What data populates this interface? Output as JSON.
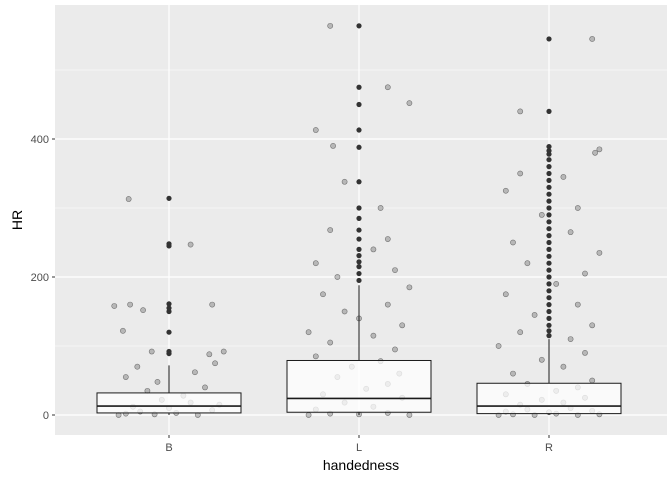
{
  "chart_data": {
    "type": "boxplot_jitter",
    "xlabel": "handedness",
    "ylabel": "HR",
    "categories": [
      "B",
      "L",
      "R"
    ],
    "ylim": [
      -28,
      588
    ],
    "yticks": [
      0,
      200,
      400
    ],
    "ytick_labels": [
      "0",
      "200",
      "400"
    ],
    "grid": true,
    "colors": {
      "panel": "#EBEBEB",
      "grid_major": "#FFFFFF",
      "box_fill": "#FFFFFF",
      "box_stroke": "#1A1A1A",
      "outlier": "#333333",
      "jitter": "#000000"
    },
    "boxes": [
      {
        "category": "B",
        "min": 0,
        "q1": 3,
        "median": 13,
        "q3": 32,
        "max": 72,
        "outliers": [
          89,
          92,
          120,
          150,
          155,
          161,
          245,
          248,
          314
        ]
      },
      {
        "category": "L",
        "min": 0,
        "q1": 4,
        "median": 24,
        "q3": 79,
        "max": 188,
        "outliers": [
          195,
          205,
          215,
          222,
          231,
          240,
          255,
          268,
          285,
          300,
          338,
          388,
          413,
          450,
          475,
          564
        ]
      },
      {
        "category": "R",
        "min": 0,
        "q1": 2,
        "median": 13,
        "q3": 46,
        "max": 110,
        "outliers": [
          115,
          122,
          130,
          140,
          150,
          160,
          170,
          180,
          190,
          200,
          210,
          220,
          230,
          240,
          250,
          260,
          270,
          280,
          290,
          300,
          310,
          320,
          330,
          340,
          350,
          360,
          370,
          378,
          383,
          389,
          440,
          545
        ]
      }
    ],
    "jitter_points": {
      "B": [
        [
          -0.35,
          0
        ],
        [
          -0.3,
          2
        ],
        [
          -0.2,
          5
        ],
        [
          -0.1,
          1
        ],
        [
          0.05,
          3
        ],
        [
          0.2,
          0
        ],
        [
          0.3,
          7
        ],
        [
          -0.25,
          12
        ],
        [
          0.15,
          18
        ],
        [
          -0.05,
          22
        ],
        [
          0.1,
          28
        ],
        [
          -0.15,
          35
        ],
        [
          0.25,
          40
        ],
        [
          -0.3,
          55
        ],
        [
          0.18,
          62
        ],
        [
          -0.22,
          70
        ],
        [
          0.32,
          75
        ],
        [
          -0.12,
          92
        ],
        [
          0.28,
          88
        ],
        [
          -0.38,
          158
        ],
        [
          -0.27,
          160
        ],
        [
          -0.18,
          152
        ],
        [
          0.3,
          160
        ],
        [
          -0.32,
          122
        ],
        [
          0.38,
          92
        ],
        [
          -0.28,
          313
        ],
        [
          0.15,
          247
        ],
        [
          0.0,
          10
        ],
        [
          0.35,
          15
        ],
        [
          -0.08,
          48
        ]
      ],
      "L": [
        [
          -0.35,
          0
        ],
        [
          -0.2,
          2
        ],
        [
          0.0,
          1
        ],
        [
          0.2,
          3
        ],
        [
          0.35,
          0
        ],
        [
          -0.3,
          8
        ],
        [
          0.1,
          12
        ],
        [
          -0.1,
          18
        ],
        [
          0.3,
          25
        ],
        [
          -0.25,
          30
        ],
        [
          0.05,
          38
        ],
        [
          0.2,
          45
        ],
        [
          -0.15,
          55
        ],
        [
          0.28,
          60
        ],
        [
          -0.05,
          70
        ],
        [
          0.15,
          78
        ],
        [
          -0.3,
          85
        ],
        [
          0.25,
          95
        ],
        [
          -0.2,
          105
        ],
        [
          0.1,
          115
        ],
        [
          -0.35,
          120
        ],
        [
          0.3,
          130
        ],
        [
          0.0,
          140
        ],
        [
          -0.1,
          150
        ],
        [
          0.2,
          160
        ],
        [
          -0.25,
          175
        ],
        [
          0.35,
          185
        ],
        [
          -0.15,
          200
        ],
        [
          0.25,
          210
        ],
        [
          -0.3,
          220
        ],
        [
          0.1,
          240
        ],
        [
          0.2,
          255
        ],
        [
          -0.2,
          268
        ],
        [
          0.15,
          300
        ],
        [
          -0.1,
          338
        ],
        [
          -0.18,
          390
        ],
        [
          -0.3,
          413
        ],
        [
          0.2,
          475
        ],
        [
          0.35,
          452
        ],
        [
          -0.2,
          564
        ]
      ],
      "R": [
        [
          -0.35,
          0
        ],
        [
          -0.25,
          1
        ],
        [
          -0.1,
          0
        ],
        [
          0.05,
          2
        ],
        [
          0.2,
          0
        ],
        [
          0.35,
          1
        ],
        [
          -0.3,
          5
        ],
        [
          -0.15,
          8
        ],
        [
          0.0,
          4
        ],
        [
          0.15,
          10
        ],
        [
          0.3,
          6
        ],
        [
          -0.2,
          15
        ],
        [
          0.1,
          18
        ],
        [
          -0.05,
          22
        ],
        [
          0.25,
          25
        ],
        [
          -0.3,
          30
        ],
        [
          0.05,
          35
        ],
        [
          0.2,
          40
        ],
        [
          -0.15,
          45
        ],
        [
          0.3,
          50
        ],
        [
          -0.25,
          60
        ],
        [
          0.1,
          70
        ],
        [
          -0.05,
          80
        ],
        [
          0.25,
          90
        ],
        [
          -0.35,
          100
        ],
        [
          0.15,
          110
        ],
        [
          -0.2,
          120
        ],
        [
          0.3,
          130
        ],
        [
          -0.1,
          145
        ],
        [
          0.2,
          160
        ],
        [
          -0.3,
          175
        ],
        [
          0.05,
          190
        ],
        [
          0.25,
          205
        ],
        [
          -0.15,
          220
        ],
        [
          0.35,
          235
        ],
        [
          -0.25,
          250
        ],
        [
          0.15,
          265
        ],
        [
          -0.05,
          290
        ],
        [
          0.2,
          300
        ],
        [
          -0.3,
          325
        ],
        [
          -0.2,
          350
        ],
        [
          0.32,
          380
        ],
        [
          0.35,
          385
        ],
        [
          -0.2,
          440
        ],
        [
          0.3,
          545
        ],
        [
          0.1,
          345
        ]
      ]
    }
  }
}
